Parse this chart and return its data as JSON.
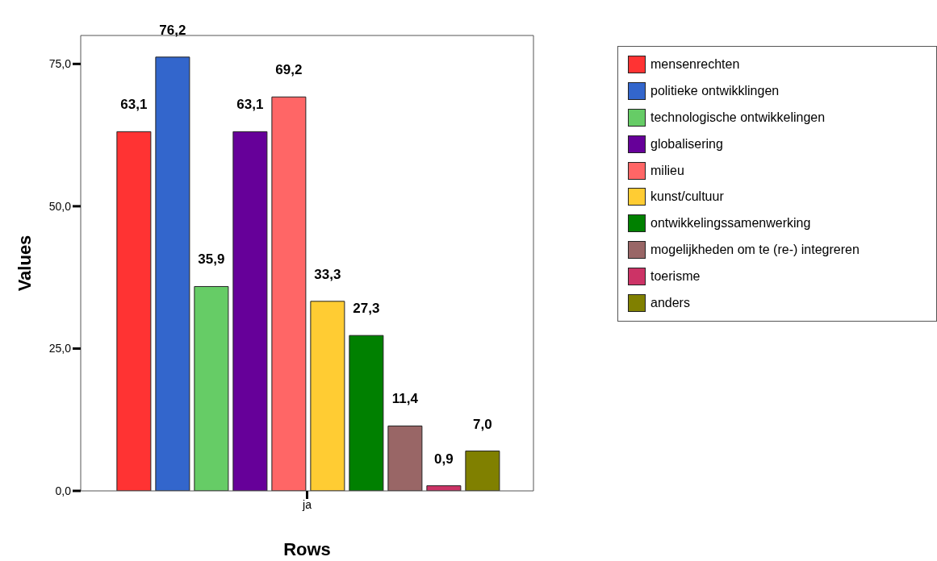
{
  "chart_data": {
    "type": "bar",
    "xlabel": "Rows",
    "ylabel": "Values",
    "categories": [
      "ja"
    ],
    "series": [
      {
        "name": "mensenrechten",
        "color": "#ff3333",
        "values": [
          63.1
        ],
        "value_labels": [
          "63,1"
        ]
      },
      {
        "name": "politieke ontwikklingen",
        "color": "#3366cc",
        "values": [
          76.2
        ],
        "value_labels": [
          "76,2"
        ]
      },
      {
        "name": "technologische ontwikkelingen",
        "color": "#66cc66",
        "values": [
          35.9
        ],
        "value_labels": [
          "35,9"
        ]
      },
      {
        "name": "globalisering",
        "color": "#660099",
        "values": [
          63.1
        ],
        "value_labels": [
          "63,1"
        ]
      },
      {
        "name": "milieu",
        "color": "#ff6666",
        "values": [
          69.2
        ],
        "value_labels": [
          "69,2"
        ]
      },
      {
        "name": "kunst/cultuur",
        "color": "#ffcc33",
        "values": [
          33.3
        ],
        "value_labels": [
          "33,3"
        ]
      },
      {
        "name": "ontwikkelingssamenwerking",
        "color": "#008000",
        "values": [
          27.3
        ],
        "value_labels": [
          "27,3"
        ]
      },
      {
        "name": "mogelijkheden om te (re-) integreren",
        "color": "#996666",
        "values": [
          11.4
        ],
        "value_labels": [
          "11,4"
        ]
      },
      {
        "name": "toerisme",
        "color": "#cc3366",
        "values": [
          0.9
        ],
        "value_labels": [
          "0,9"
        ]
      },
      {
        "name": "anders",
        "color": "#808000",
        "values": [
          7.0
        ],
        "value_labels": [
          "7,0"
        ]
      }
    ],
    "ylim": [
      0,
      80
    ],
    "yticks": [
      {
        "value": 0,
        "label": "0,0"
      },
      {
        "value": 25,
        "label": "25,0"
      },
      {
        "value": 50,
        "label": "50,0"
      },
      {
        "value": 75,
        "label": "75,0"
      }
    ],
    "grid": false,
    "legend": "top right"
  }
}
